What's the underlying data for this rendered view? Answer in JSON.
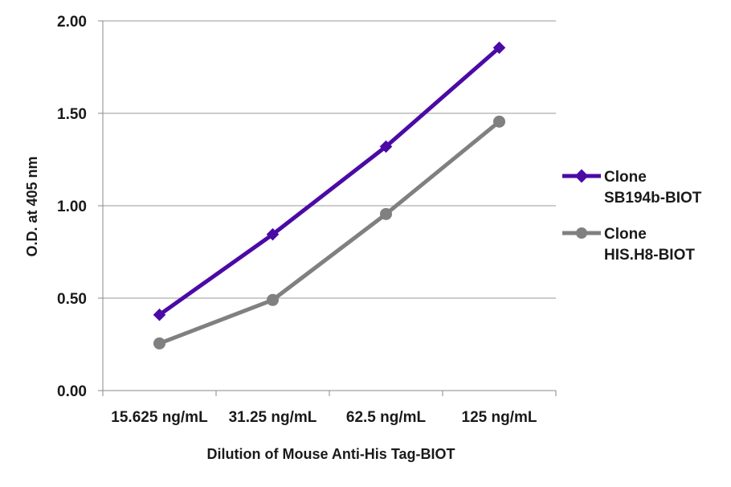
{
  "chart_data": {
    "type": "line",
    "title": "",
    "xlabel": "Dilution of Mouse Anti-His Tag-BIOT",
    "ylabel": "O.D. at 405 nm",
    "categories": [
      "15.625 ng/mL",
      "31.25 ng/mL",
      "62.5 ng/mL",
      "125 ng/mL"
    ],
    "ylim": [
      0,
      2
    ],
    "yticks": [
      "0.00",
      "0.50",
      "1.00",
      "1.50",
      "2.00"
    ],
    "grid": true,
    "legend_position": "right",
    "series": [
      {
        "name_line1": "Clone",
        "name_line2": "SB194b-BIOT",
        "values": [
          0.41,
          0.845,
          1.32,
          1.855
        ],
        "color": "#4B0AA6",
        "marker": "diamond"
      },
      {
        "name_line1": "Clone",
        "name_line2": "HIS.H8-BIOT",
        "values": [
          0.255,
          0.49,
          0.955,
          1.455
        ],
        "color": "#808080",
        "marker": "circle"
      }
    ]
  }
}
